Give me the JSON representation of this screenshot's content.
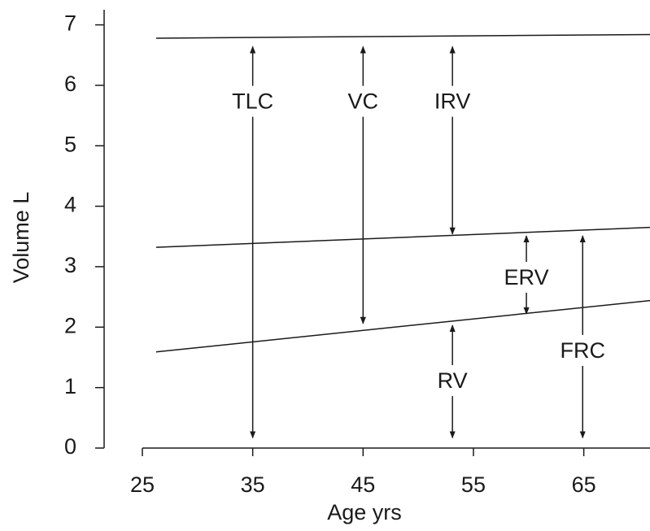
{
  "chart_data": {
    "type": "line",
    "x_label": "Age  yrs",
    "y_label": "Volume L",
    "x": [
      26.25,
      71
    ],
    "series": [
      {
        "color": "#1a1a1a",
        "values": [
          6.78,
          6.84
        ]
      },
      {
        "color": "#1a1a1a",
        "values": [
          3.32,
          3.65
        ]
      },
      {
        "color": "#1a1a1a",
        "values": [
          1.59,
          2.44
        ]
      }
    ],
    "xlim": [
      25,
      71
    ],
    "ylim": [
      0,
      7.25
    ],
    "xticks": [
      25,
      35,
      45,
      55,
      65
    ],
    "yticks": [
      0,
      1,
      2,
      3,
      4,
      5,
      6,
      7
    ],
    "annotations": [
      {
        "label": "TLC",
        "x": 35,
        "y": 5.71,
        "from": 0.17,
        "to": 6.64
      },
      {
        "label": "VC",
        "x": 45,
        "y": 5.71,
        "from": 2.06,
        "to": 6.64
      },
      {
        "label": "IRV",
        "x": 53.1,
        "y": 5.71,
        "from": 3.54,
        "to": 6.64
      },
      {
        "label": "ERV",
        "x": 59.8,
        "y": 2.8,
        "from": 2.22,
        "to": 3.51
      },
      {
        "label": "RV",
        "x": 53.1,
        "y": 1.09,
        "from": 0.17,
        "to": 2.03
      },
      {
        "label": "FRC",
        "x": 64.9,
        "y": 1.59,
        "from": 0.17,
        "to": 3.51
      }
    ]
  }
}
